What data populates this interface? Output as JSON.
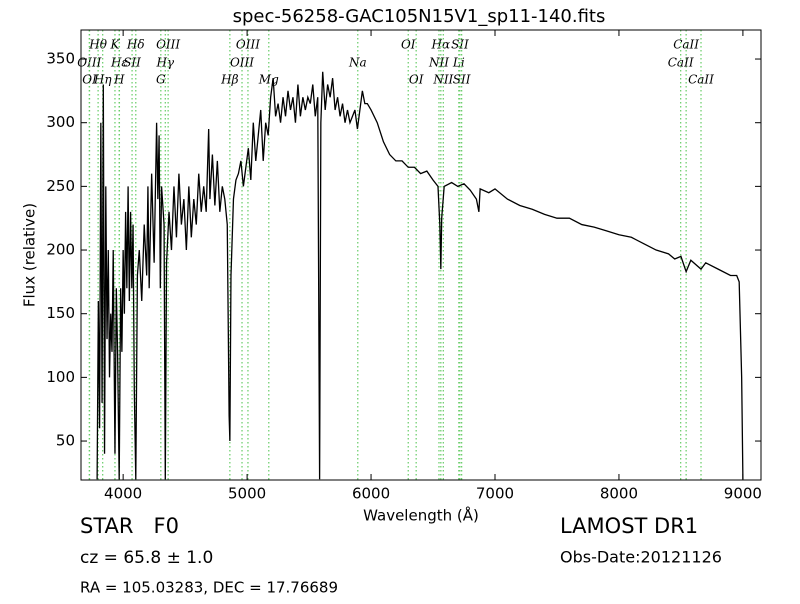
{
  "chart_data": {
    "type": "line",
    "title": "spec-56258-GAC105N15V1_sp11-140.fits",
    "xlabel": "Wavelength (Å)",
    "ylabel": "Flux (relative)",
    "xlim": [
      3660,
      9146
    ],
    "ylim": [
      19.4,
      372.8
    ],
    "xticks": [
      4000,
      5000,
      6000,
      7000,
      8000,
      9000
    ],
    "yticks": [
      50,
      100,
      150,
      200,
      250,
      300,
      350
    ],
    "line_marker_color": "#66cc66",
    "line_labels": [
      [
        {
          "label": "Hθ",
          "wavelength": 3798
        },
        {
          "label": "K",
          "wavelength": 3934
        },
        {
          "label": "Hδ",
          "wavelength": 4102
        },
        {
          "label": "OIII",
          "wavelength": 4363
        },
        {
          "label": "OIII",
          "wavelength": 5007
        },
        {
          "label": "OI",
          "wavelength": 6300
        },
        {
          "label": "Hα",
          "wavelength": 6563
        },
        {
          "label": "SII",
          "wavelength": 6717
        },
        {
          "label": "CaII",
          "wavelength": 8542
        }
      ],
      [
        {
          "label": "OIII",
          "wavelength": 3727
        },
        {
          "label": "Hε",
          "wavelength": 3970
        },
        {
          "label": "SII",
          "wavelength": 4072
        },
        {
          "label": "Hγ",
          "wavelength": 4340
        },
        {
          "label": "OIII",
          "wavelength": 4959
        },
        {
          "label": "Na",
          "wavelength": 5893
        },
        {
          "label": "NII",
          "wavelength": 6548
        },
        {
          "label": "Li",
          "wavelength": 6708
        },
        {
          "label": "CaII",
          "wavelength": 8498
        }
      ],
      [
        {
          "label": "OI",
          "wavelength": 3729
        },
        {
          "label": "Hη",
          "wavelength": 3835
        },
        {
          "label": "H",
          "wavelength": 3968
        },
        {
          "label": "G",
          "wavelength": 4304
        },
        {
          "label": "Hβ",
          "wavelength": 4861
        },
        {
          "label": "Mg",
          "wavelength": 5175
        },
        {
          "label": "OI",
          "wavelength": 6364
        },
        {
          "label": "NII",
          "wavelength": 6583
        },
        {
          "label": "SII",
          "wavelength": 6731
        },
        {
          "label": "CaII",
          "wavelength": 8662
        }
      ]
    ],
    "x": [
      3790,
      3800,
      3810,
      3820,
      3830,
      3840,
      3850,
      3860,
      3870,
      3880,
      3890,
      3900,
      3910,
      3920,
      3934,
      3945,
      3955,
      3968,
      3980,
      3990,
      4000,
      4010,
      4020,
      4030,
      4040,
      4050,
      4060,
      4070,
      4080,
      4090,
      4102,
      4115,
      4130,
      4150,
      4170,
      4190,
      4200,
      4210,
      4230,
      4250,
      4270,
      4280,
      4290,
      4300,
      4310,
      4330,
      4340,
      4350,
      4370,
      4390,
      4410,
      4430,
      4450,
      4470,
      4490,
      4510,
      4530,
      4550,
      4570,
      4590,
      4610,
      4630,
      4650,
      4670,
      4690,
      4700,
      4720,
      4740,
      4760,
      4780,
      4800,
      4820,
      4840,
      4855,
      4861,
      4870,
      4890,
      4910,
      4930,
      4950,
      4970,
      4990,
      5010,
      5030,
      5050,
      5070,
      5090,
      5110,
      5130,
      5150,
      5170,
      5190,
      5210,
      5230,
      5250,
      5270,
      5290,
      5310,
      5330,
      5350,
      5370,
      5390,
      5410,
      5430,
      5450,
      5470,
      5490,
      5510,
      5530,
      5550,
      5570,
      5585,
      5595,
      5610,
      5630,
      5650,
      5670,
      5690,
      5710,
      5730,
      5750,
      5770,
      5790,
      5810,
      5830,
      5850,
      5870,
      5890,
      5910,
      5930,
      5950,
      5970,
      6000,
      6050,
      6100,
      6150,
      6200,
      6250,
      6300,
      6350,
      6400,
      6450,
      6500,
      6540,
      6555,
      6563,
      6570,
      6590,
      6650,
      6700,
      6750,
      6800,
      6850,
      6870,
      6880,
      6950,
      7000,
      7100,
      7200,
      7300,
      7400,
      7500,
      7600,
      7700,
      7800,
      7900,
      8000,
      8100,
      8200,
      8300,
      8400,
      8450,
      8500,
      8542,
      8580,
      8662,
      8700,
      8800,
      8900,
      8950,
      8970,
      8990,
      9000
    ],
    "series": [
      {
        "color": "#000000",
        "values": [
          20,
          160,
          60,
          300,
          80,
          330,
          40,
          250,
          130,
          200,
          100,
          150,
          120,
          200,
          40,
          170,
          120,
          20,
          170,
          120,
          200,
          150,
          230,
          170,
          250,
          160,
          230,
          170,
          220,
          90,
          20,
          180,
          200,
          160,
          220,
          180,
          250,
          170,
          260,
          190,
          300,
          240,
          290,
          170,
          250,
          220,
          20,
          190,
          230,
          200,
          250,
          210,
          260,
          220,
          240,
          200,
          250,
          210,
          240,
          220,
          260,
          230,
          250,
          230,
          295,
          240,
          275,
          235,
          270,
          230,
          250,
          240,
          220,
          70,
          50,
          180,
          240,
          255,
          260,
          270,
          250,
          265,
          280,
          255,
          300,
          270,
          290,
          310,
          270,
          300,
          290,
          320,
          335,
          305,
          315,
          300,
          320,
          305,
          325,
          310,
          320,
          300,
          330,
          305,
          320,
          310,
          320,
          315,
          330,
          305,
          320,
          20,
          300,
          340,
          310,
          330,
          320,
          335,
          310,
          320,
          305,
          315,
          300,
          310,
          300,
          305,
          310,
          295,
          310,
          325,
          315,
          315,
          310,
          300,
          285,
          275,
          270,
          270,
          265,
          265,
          260,
          262,
          255,
          250,
          220,
          185,
          225,
          250,
          253,
          250,
          252,
          247,
          240,
          230,
          248,
          245,
          248,
          240,
          235,
          232,
          228,
          225,
          225,
          220,
          218,
          215,
          212,
          210,
          205,
          200,
          197,
          193,
          195,
          183,
          192,
          185,
          190,
          185,
          180,
          180,
          175,
          100,
          20
        ]
      }
    ],
    "annotations": {
      "object_class": "STAR   F0",
      "survey": "LAMOST DR1",
      "redshift": "cz = 65.8 ± 1.0",
      "obs_date": "Obs-Date:20121126",
      "position": "RA = 105.03283, DEC = 17.76689"
    }
  }
}
